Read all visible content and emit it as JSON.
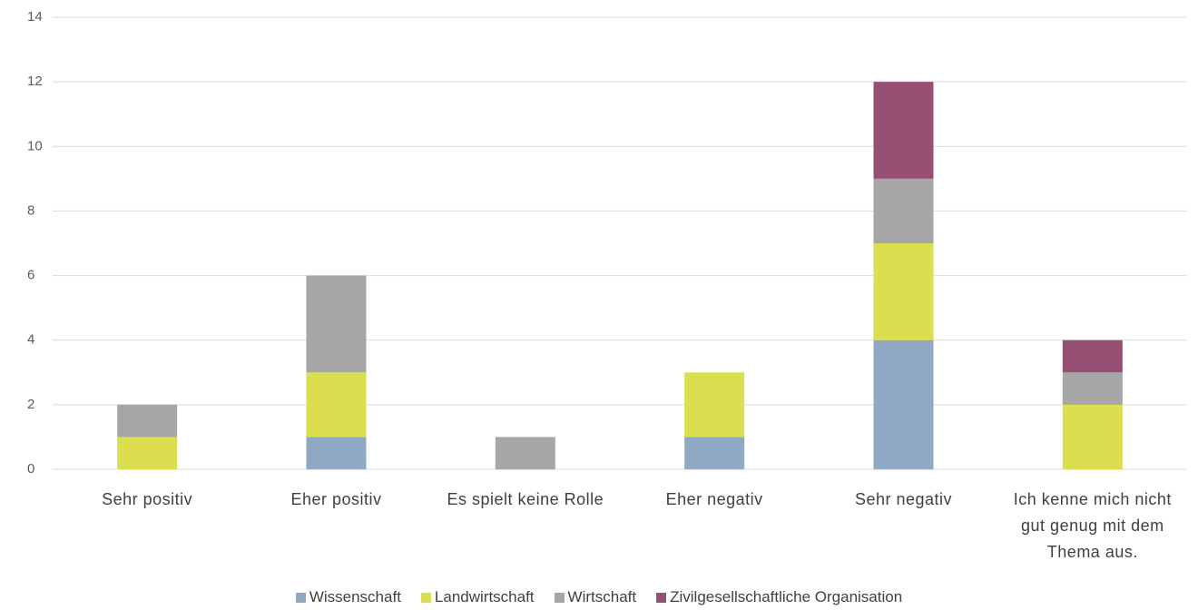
{
  "chart_data": {
    "type": "stacked_bar",
    "categories": [
      "Sehr positiv",
      "Eher positiv",
      "Es spielt keine Rolle",
      "Eher negativ",
      "Sehr negativ",
      "Ich kenne mich nicht gut genug mit dem Thema aus."
    ],
    "series": [
      {
        "name": "Wissenschaft",
        "color": "#8fa9c4",
        "values": [
          0,
          1,
          0,
          1,
          4,
          0
        ]
      },
      {
        "name": "Landwirtschaft",
        "color": "#dbdf4f",
        "values": [
          1,
          2,
          0,
          2,
          3,
          2
        ]
      },
      {
        "name": "Wirtschaft",
        "color": "#a6a6a6",
        "values": [
          1,
          3,
          1,
          0,
          2,
          1
        ]
      },
      {
        "name": "Zivilgesellschaftliche Organisation",
        "color": "#954f72",
        "values": [
          0,
          0,
          0,
          0,
          3,
          1
        ]
      }
    ],
    "ylim": [
      0,
      14
    ],
    "yticks": [
      0,
      2,
      4,
      6,
      8,
      10,
      12,
      14
    ],
    "grid": true,
    "legend": "bottom"
  }
}
